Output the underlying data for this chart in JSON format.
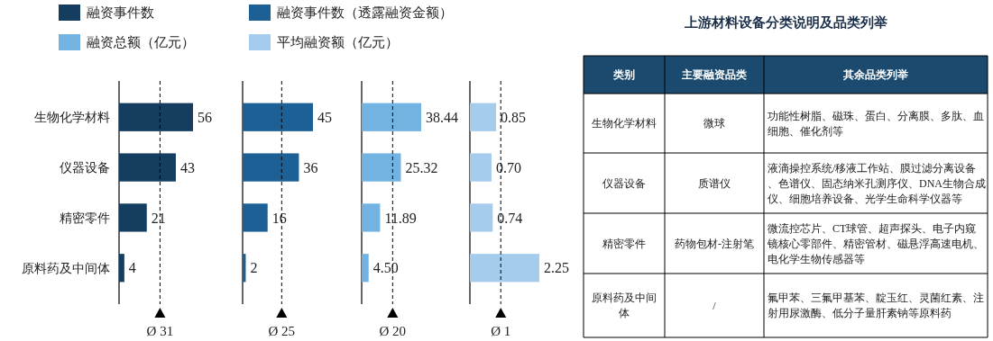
{
  "chart_data": [
    {
      "type": "bar",
      "orientation": "horizontal",
      "categories": [
        "生物化学材料",
        "仪器设备",
        "精密零件",
        "原料药及中间体"
      ],
      "legend": "top",
      "series": [
        {
          "name": "融资事件数",
          "color": "#143d5f",
          "values": [
            56,
            43,
            21,
            4
          ],
          "value_labels": [
            "56",
            "43",
            "21",
            "4"
          ]
        }
      ],
      "ref_lines": [
        {
          "axis": "x",
          "value": 31,
          "label": "Ø 31",
          "line_style": "dashed",
          "color": "#000000"
        }
      ]
    },
    {
      "type": "bar",
      "orientation": "horizontal",
      "categories": [
        null,
        null,
        null,
        null
      ],
      "legend": "top",
      "series": [
        {
          "name": "融资事件数（透露融资金额）",
          "color": "#1c6095",
          "values": [
            45,
            36,
            16,
            2
          ],
          "value_labels": [
            "45",
            "36",
            "16",
            "2"
          ]
        }
      ],
      "ref_lines": [
        {
          "axis": "x",
          "value": 25,
          "label": "Ø 25",
          "line_style": "dashed",
          "color": "#000000"
        }
      ]
    },
    {
      "type": "bar",
      "orientation": "horizontal",
      "categories": [
        null,
        null,
        null,
        null
      ],
      "legend": "top",
      "series": [
        {
          "name": "融资总额（亿元）",
          "color": "#72b3e2",
          "values": [
            38.44,
            25.32,
            11.89,
            4.5
          ],
          "value_labels": [
            "38.44",
            "25.32",
            "11.89",
            "4.50"
          ]
        }
      ],
      "ref_lines": [
        {
          "axis": "x",
          "value": 20,
          "label": "Ø 20",
          "line_style": "dashed",
          "color": "#000000"
        }
      ]
    },
    {
      "type": "bar",
      "orientation": "horizontal",
      "categories": [
        null,
        null,
        null,
        null
      ],
      "legend": "top",
      "series": [
        {
          "name": "平均融资额（亿元）",
          "color": "#a5ccec",
          "values": [
            0.85,
            0.7,
            0.74,
            2.25
          ],
          "value_labels": [
            "0.85",
            "0.70",
            "0.74",
            "2.25"
          ]
        }
      ],
      "ref_lines": [
        {
          "axis": "x",
          "value": 1,
          "label": "Ø 1",
          "line_style": "dashed",
          "color": "#000000"
        }
      ]
    },
    {
      "type": "other",
      "title": "上游材料设备分类说明及品类列举",
      "categories": [
        "类别",
        "主要融资品类",
        "其余品类列举"
      ],
      "cell_labels": [
        [
          "生物化学材料",
          "微球",
          "功能性树脂、磁珠、蛋白、分离膜、多肽、血细胞、催化剂等"
        ],
        [
          "仪器设备",
          "质谱仪",
          "液滴操控系统/移液工作站、膜过滤分离设备、色谱仪、固态纳米孔测序仪、DNA生物合成仪、细胞培养设备、光学生命科学仪器等"
        ],
        [
          "精密零件",
          "药物包材-注射笔",
          "微流控芯片、CT球管、超声探头、电子内窥镜核心零部件、精密管材、磁悬浮高速电机、电化学生物传感器等"
        ],
        [
          "原料药及中间体",
          "/",
          "氟甲苯、三氟甲基苯、靛玉红、灵菌红素、注射用尿激酶、低分子量肝素钠等原料药"
        ]
      ]
    }
  ]
}
